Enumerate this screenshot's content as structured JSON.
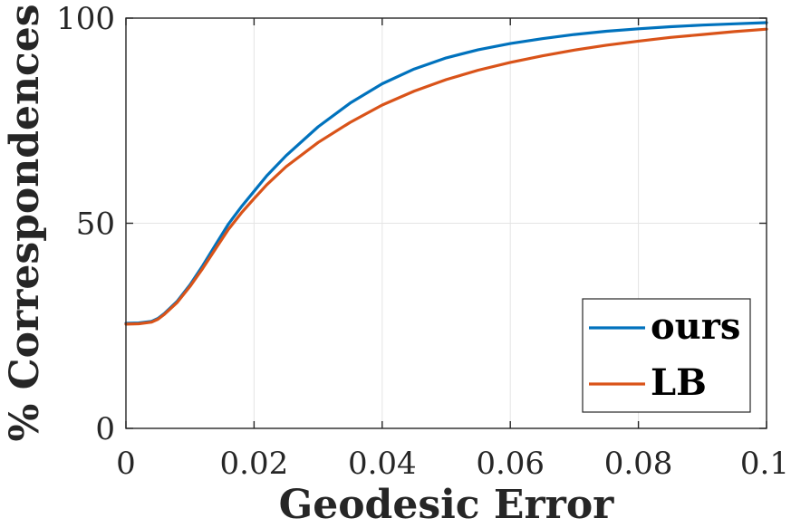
{
  "chart_data": {
    "type": "line",
    "title": "",
    "xlabel": "Geodesic Error",
    "ylabel": "% Correspondences",
    "xlim": [
      0,
      0.1
    ],
    "ylim": [
      0,
      100
    ],
    "xticks": [
      0,
      0.02,
      0.04,
      0.06,
      0.08,
      0.1
    ],
    "xtick_labels": [
      "0",
      "0.02",
      "0.04",
      "0.06",
      "0.08",
      "0.1"
    ],
    "yticks": [
      0,
      50,
      100
    ],
    "ytick_labels": [
      "0",
      "50",
      "100"
    ],
    "grid": true,
    "legend_position": "bottom-right",
    "series": [
      {
        "name": "ours",
        "color": "#0072BD",
        "x": [
          0,
          0.002,
          0.004,
          0.005,
          0.006,
          0.008,
          0.01,
          0.012,
          0.014,
          0.016,
          0.018,
          0.02,
          0.022,
          0.025,
          0.03,
          0.035,
          0.04,
          0.045,
          0.05,
          0.055,
          0.06,
          0.065,
          0.07,
          0.075,
          0.08,
          0.085,
          0.09,
          0.095,
          0.1
        ],
        "y": [
          25.6,
          25.7,
          26.1,
          26.8,
          28.0,
          31.0,
          35.0,
          39.7,
          44.8,
          49.8,
          54.0,
          57.8,
          61.6,
          66.5,
          73.5,
          79.3,
          84.0,
          87.6,
          90.3,
          92.3,
          93.8,
          95.0,
          96.0,
          96.8,
          97.4,
          97.9,
          98.3,
          98.6,
          98.9
        ]
      },
      {
        "name": "LB",
        "color": "#D95319",
        "x": [
          0,
          0.002,
          0.004,
          0.005,
          0.006,
          0.008,
          0.01,
          0.012,
          0.014,
          0.016,
          0.018,
          0.02,
          0.022,
          0.025,
          0.03,
          0.035,
          0.04,
          0.045,
          0.05,
          0.055,
          0.06,
          0.065,
          0.07,
          0.075,
          0.08,
          0.085,
          0.09,
          0.095,
          0.1
        ],
        "y": [
          25.4,
          25.5,
          25.9,
          26.6,
          27.8,
          30.7,
          34.6,
          39.0,
          43.8,
          48.5,
          52.5,
          56.0,
          59.4,
          63.8,
          69.7,
          74.6,
          78.8,
          82.2,
          85.0,
          87.3,
          89.2,
          90.8,
          92.2,
          93.4,
          94.4,
          95.3,
          96.0,
          96.7,
          97.3
        ]
      }
    ]
  }
}
